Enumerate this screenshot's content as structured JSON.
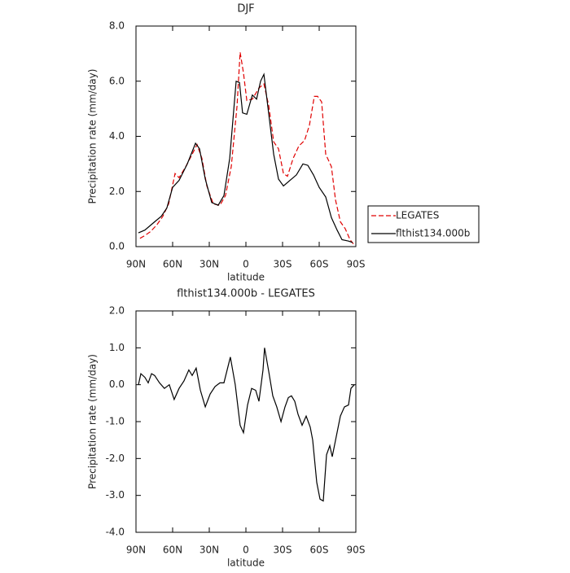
{
  "chart_data": [
    {
      "type": "line",
      "title": "DJF",
      "xlabel": "latitude",
      "ylabel": "Precipitation rate (mm/day)",
      "xlim": [
        90,
        -90
      ],
      "ylim": [
        0,
        8
      ],
      "xticks": [
        {
          "value": 90,
          "label": "90N"
        },
        {
          "value": 60,
          "label": "60N"
        },
        {
          "value": 30,
          "label": "30N"
        },
        0,
        {
          "value": -30,
          "label": "30S"
        },
        {
          "value": -60,
          "label": "60S"
        },
        {
          "value": -90,
          "label": "90S"
        }
      ],
      "yticks": [
        {
          "value": 0,
          "label": "0.0"
        },
        {
          "value": 2,
          "label": "2.0"
        },
        {
          "value": 4,
          "label": "4.0"
        },
        {
          "value": 6,
          "label": "6.0"
        },
        {
          "value": 8,
          "label": "8.0"
        }
      ],
      "legend": "outside-right",
      "series": [
        {
          "name": "LEGATES",
          "color": "#e00000",
          "linestyle": "dashed",
          "x": [
            86.7,
            82.7,
            78,
            72.7,
            68,
            63.3,
            58,
            54.7,
            49.3,
            44,
            40,
            36,
            32,
            26.7,
            21.3,
            16.7,
            12,
            7.3,
            4.7,
            2,
            -0.7,
            -5.3,
            -10.7,
            -14.7,
            -18.7,
            -22.7,
            -26.7,
            -30.7,
            -34,
            -38.7,
            -43.3,
            -48,
            -52,
            -56,
            -58.7,
            -62,
            -65.3,
            -70,
            -73.3,
            -77.3,
            -81.3,
            -85.3,
            -88
          ],
          "values": [
            0.3,
            0.4,
            0.55,
            0.8,
            1.1,
            1.55,
            2.65,
            2.5,
            2.9,
            3.35,
            3.7,
            3.2,
            2.2,
            1.55,
            1.5,
            1.85,
            2.9,
            5.1,
            7.05,
            6.3,
            5.3,
            5.35,
            5.75,
            5.9,
            5.1,
            3.8,
            3.55,
            2.65,
            2.55,
            3.2,
            3.65,
            3.85,
            4.4,
            5.45,
            5.45,
            5.25,
            3.35,
            2.9,
            1.7,
            0.9,
            0.65,
            0.25,
            0.1
          ]
        },
        {
          "name": "flthist134.000b",
          "color": "#000000",
          "linestyle": "solid",
          "x": [
            88,
            82.7,
            74.7,
            69.3,
            64.7,
            60,
            54.7,
            48,
            41.3,
            38,
            33.3,
            28,
            22.7,
            18,
            13.3,
            8,
            5.3,
            2.7,
            -0.7,
            -5.3,
            -8.7,
            -12,
            -14.7,
            -18.7,
            -22.7,
            -26.7,
            -30.7,
            -36,
            -41.3,
            -46.7,
            -50.7,
            -55.3,
            -60,
            -65.3,
            -70,
            -74.7,
            -78.7,
            -84,
            -87.3
          ],
          "values": [
            0.5,
            0.6,
            0.9,
            1.1,
            1.4,
            2.15,
            2.4,
            3.0,
            3.75,
            3.55,
            2.45,
            1.6,
            1.5,
            1.85,
            3.2,
            6.0,
            5.95,
            4.85,
            4.8,
            5.5,
            5.35,
            6.0,
            6.25,
            4.8,
            3.35,
            2.45,
            2.2,
            2.4,
            2.6,
            3.0,
            2.95,
            2.6,
            2.15,
            1.8,
            1.05,
            0.6,
            0.25,
            0.2,
            0.15
          ]
        }
      ]
    },
    {
      "type": "line",
      "title": "flthist134.000b - LEGATES",
      "xlabel": "latitude",
      "ylabel": "Precipitation rate (mm/day)",
      "xlim": [
        90,
        -90
      ],
      "ylim": [
        -4,
        2
      ],
      "xticks": [
        {
          "value": 90,
          "label": "90N"
        },
        {
          "value": 60,
          "label": "60N"
        },
        {
          "value": 30,
          "label": "30N"
        },
        0,
        {
          "value": -30,
          "label": "30S"
        },
        {
          "value": -60,
          "label": "60S"
        },
        {
          "value": -90,
          "label": "90S"
        }
      ],
      "yticks": [
        {
          "value": -4,
          "label": "-4.0"
        },
        {
          "value": -3,
          "label": "-3.0"
        },
        {
          "value": -2,
          "label": "-2.0"
        },
        {
          "value": -1,
          "label": "-1.0"
        },
        {
          "value": 0,
          "label": "0.0"
        },
        {
          "value": 1,
          "label": "1.0"
        },
        {
          "value": 2,
          "label": "2.0"
        }
      ],
      "color": "#000000",
      "x": [
        88,
        86,
        82.7,
        80,
        77.3,
        74.7,
        70.7,
        66.7,
        62.7,
        58.7,
        54.7,
        50.7,
        46.7,
        44,
        40.7,
        37.3,
        33.3,
        29.3,
        25.3,
        21.3,
        18,
        12.7,
        8.7,
        4.7,
        2,
        -1.3,
        -4.7,
        -8,
        -10.7,
        -14,
        -15.3,
        -18.7,
        -22,
        -25.3,
        -28.7,
        -32,
        -34.7,
        -37.3,
        -40,
        -42.7,
        -46,
        -49.3,
        -52.7,
        -54.7,
        -58,
        -60.7,
        -63.3,
        -66,
        -68.7,
        -70.7,
        -74,
        -77.3,
        -80.7,
        -84,
        -86,
        -88.7
      ],
      "values": [
        0.0,
        0.3,
        0.2,
        0.05,
        0.3,
        0.25,
        0.05,
        -0.1,
        0.0,
        -0.4,
        -0.1,
        0.1,
        0.4,
        0.25,
        0.45,
        -0.15,
        -0.6,
        -0.25,
        -0.05,
        0.05,
        0.05,
        0.75,
        0.0,
        -1.1,
        -1.3,
        -0.55,
        -0.1,
        -0.15,
        -0.45,
        0.4,
        1.0,
        0.35,
        -0.3,
        -0.6,
        -1.0,
        -0.6,
        -0.35,
        -0.3,
        -0.45,
        -0.8,
        -1.1,
        -0.85,
        -1.15,
        -1.5,
        -2.65,
        -3.1,
        -3.15,
        -1.9,
        -1.65,
        -1.95,
        -1.4,
        -0.85,
        -0.6,
        -0.55,
        -0.1,
        0.0
      ]
    }
  ]
}
